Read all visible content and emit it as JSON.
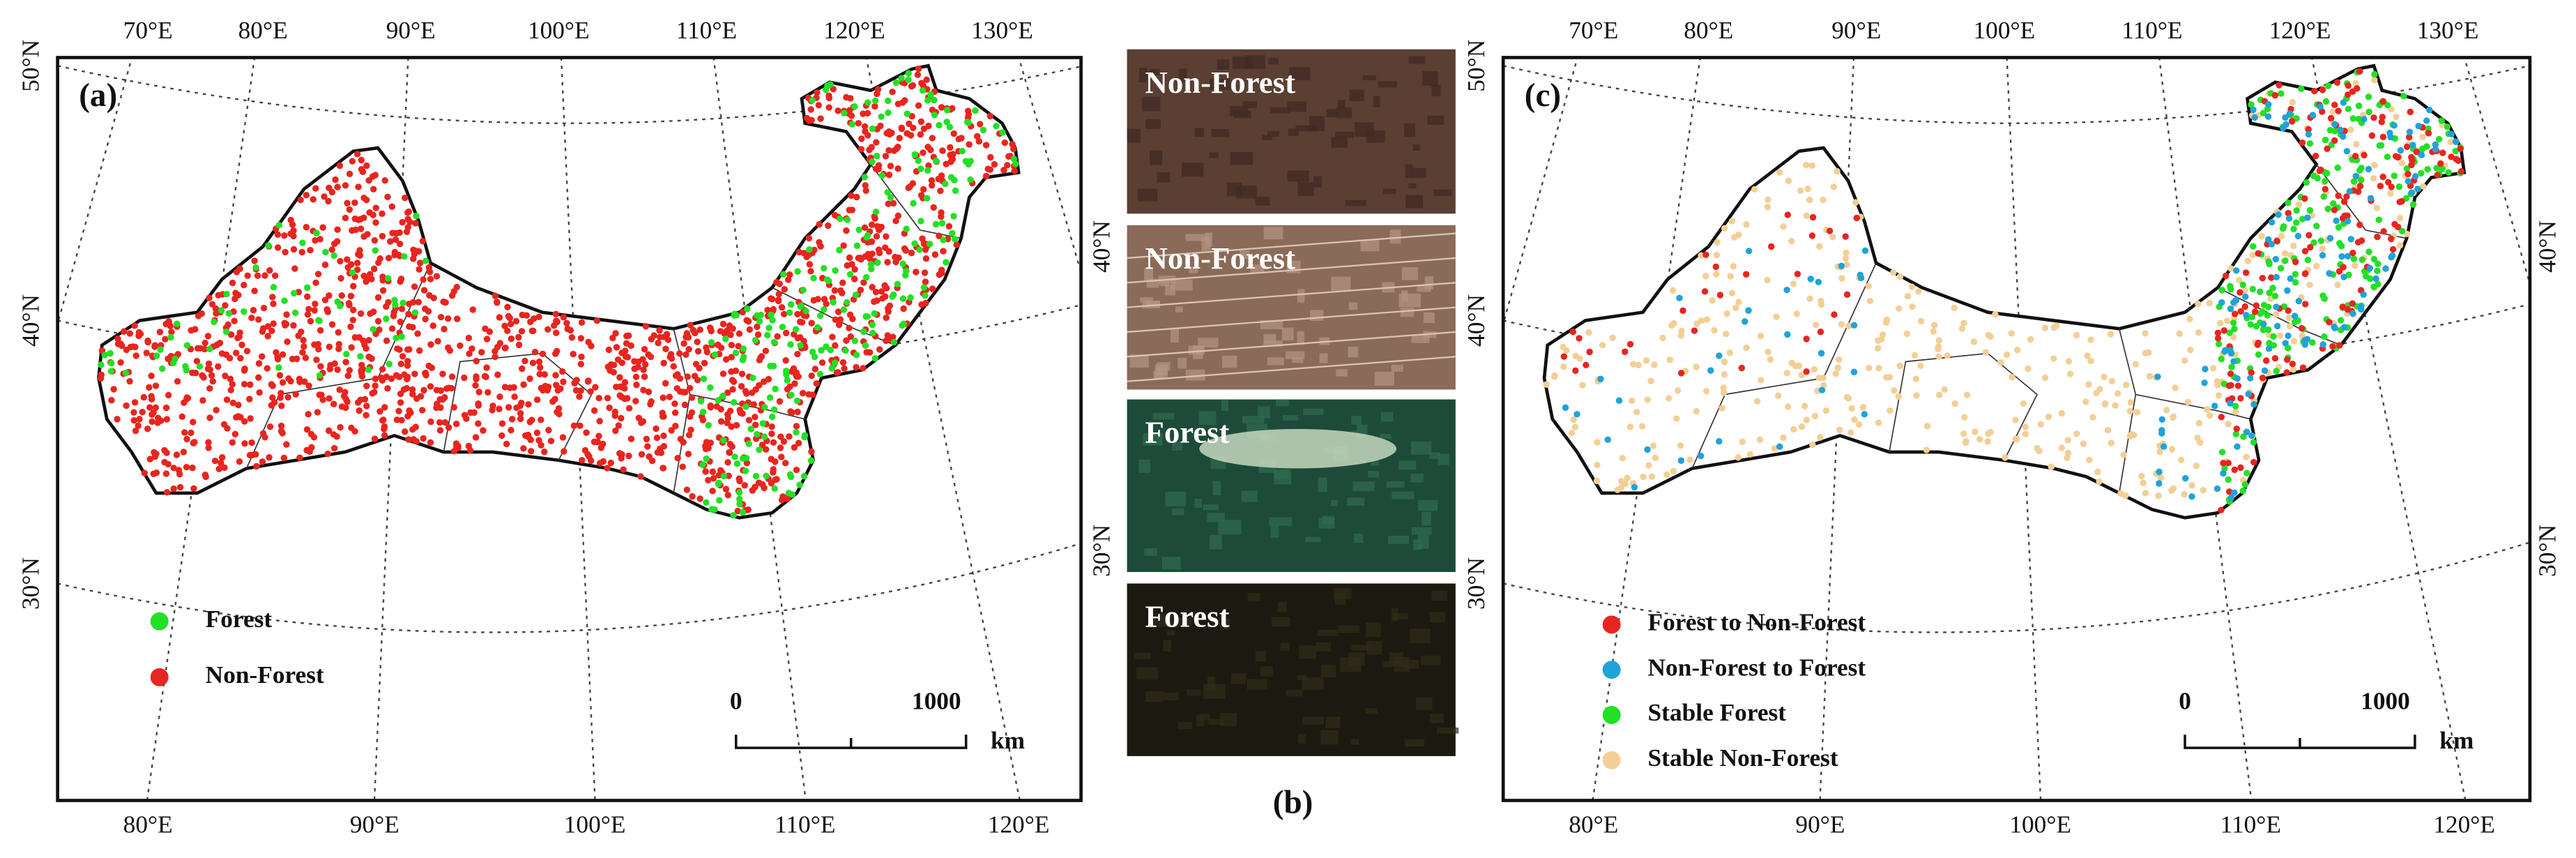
{
  "panels": [
    {
      "label": "(a)",
      "top_lon_labels": [
        "70°E",
        "80°E",
        "90°E",
        "100°E",
        "110°E",
        "120°E",
        "130°E"
      ],
      "bottom_lon_labels": [
        "80°E",
        "90°E",
        "100°E",
        "110°E",
        "120°E"
      ],
      "left_lat_labels": [
        "50°N",
        "40°N",
        "30°N"
      ],
      "right_lat_labels": [
        "40°N",
        "30°N"
      ],
      "legend": [
        "Forest",
        "Non-Forest"
      ],
      "scale_bar": {
        "labels": [
          "0",
          "1000"
        ],
        "unit": "km"
      }
    },
    {
      "label": "(b)",
      "images": [
        "Non-Forest",
        "Non-Forest",
        "Forest",
        "Forest"
      ]
    },
    {
      "label": "(c)",
      "top_lon_labels": [
        "70°E",
        "80°E",
        "90°E",
        "100°E",
        "110°E",
        "120°E",
        "130°E"
      ],
      "bottom_lon_labels": [
        "80°E",
        "90°E",
        "100°E",
        "110°E",
        "120°E"
      ],
      "left_lat_labels": [
        "50°N",
        "40°N",
        "30°N"
      ],
      "right_lat_labels": [
        "40°N",
        "30°N"
      ],
      "legend": [
        "Forest to Non-Forest",
        "Non-Forest to Forest",
        "Stable Forest",
        "Stable Non-Forest"
      ],
      "scale_bar": {
        "labels": [
          "0",
          "1000"
        ],
        "unit": "km"
      }
    }
  ]
}
